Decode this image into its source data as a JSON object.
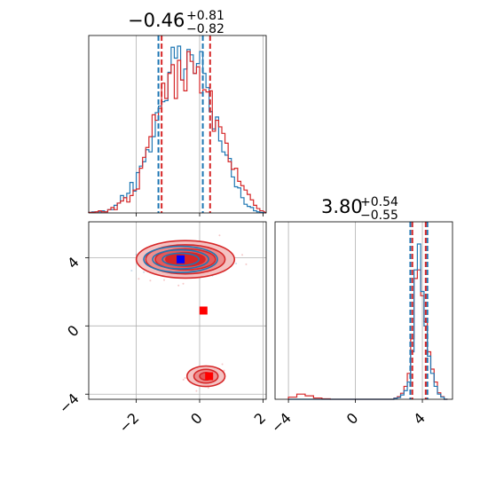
{
  "colors": {
    "blue": "#1f77b4",
    "red": "#d62728",
    "grid": "#b0b0b0",
    "spine": "#000000"
  },
  "chart_data": {
    "type": "corner",
    "series": [
      {
        "name": "",
        "color": "#1f77b4"
      },
      {
        "name": "",
        "color": "#d62728"
      }
    ],
    "panels": [
      {
        "panel": "hist-param-1",
        "type": "histogram",
        "title": {
          "main": "−0.46",
          "sup": "+0.81",
          "sub": "−0.82"
        },
        "xlim": [
          -3.5,
          2.1
        ],
        "grid": true,
        "quantiles": {
          "blue": [
            -1.3,
            0.1
          ],
          "red": [
            -1.2,
            0.33
          ]
        },
        "bins": [
          -3.5,
          -3.4,
          -3.3,
          -3.2,
          -3.1,
          -3.0,
          -2.9,
          -2.8,
          -2.7,
          -2.6,
          -2.5,
          -2.4,
          -2.3,
          -2.2,
          -2.1,
          -2.0,
          -1.9,
          -1.8,
          -1.7,
          -1.6,
          -1.5,
          -1.4,
          -1.3,
          -1.2,
          -1.1,
          -1.0,
          -0.9,
          -0.8,
          -0.7,
          -0.6,
          -0.5,
          -0.4,
          -0.3,
          -0.2,
          -0.1,
          0.0,
          0.1,
          0.2,
          0.3,
          0.4,
          0.5,
          0.6,
          0.7,
          0.8,
          0.9,
          1.0,
          1.1,
          1.2,
          1.3,
          1.4,
          1.5,
          1.6,
          1.7,
          1.8,
          1.9,
          2.0
        ],
        "counts": {
          "blue": [
            0.5,
            1,
            1,
            1,
            2,
            1,
            3,
            3,
            7,
            9,
            16,
            14,
            18,
            28,
            20,
            37,
            43,
            47,
            58,
            56,
            70,
            92,
            98,
            102,
            103,
            129,
            152,
            142,
            153,
            122,
            132,
            150,
            145,
            128,
            137,
            148,
            128,
            115,
            93,
            77,
            88,
            66,
            56,
            53,
            50,
            33,
            24,
            23,
            14,
            8,
            6,
            5,
            2,
            1,
            0.5
          ],
          "red": [
            0.5,
            0.5,
            1,
            2,
            1,
            1,
            3,
            5,
            3,
            9,
            11,
            14,
            10,
            16,
            21,
            22,
            41,
            51,
            60,
            70,
            90,
            85,
            96,
            119,
            105,
            128,
            136,
            105,
            140,
            122,
            112,
            148,
            139,
            128,
            134,
            110,
            113,
            111,
            112,
            75,
            85,
            79,
            73,
            64,
            47,
            40,
            41,
            29,
            25,
            21,
            17,
            12,
            7,
            4,
            2
          ]
        }
      },
      {
        "panel": "scatter-2d",
        "type": "contour",
        "xlim": [
          -3.5,
          2.1
        ],
        "ylim": [
          -4.3,
          6.1
        ],
        "xticks": [
          "−2",
          "0",
          "2"
        ],
        "yticks": [
          "−4",
          "0",
          "4"
        ],
        "xtick_values": [
          -2,
          0,
          2
        ],
        "ytick_values": [
          -4,
          0,
          4
        ],
        "grid": true,
        "markers": [
          {
            "color": "#1f77b4",
            "fill": "#0000ff",
            "x": -0.6,
            "y": 3.9
          },
          {
            "color": "#d62728",
            "fill": "#ff0000",
            "x": 0.12,
            "y": 0.9
          },
          {
            "color": "#d62728",
            "fill": "#ff0000",
            "x": 0.3,
            "y": -2.95
          }
        ],
        "blobs": [
          {
            "cx": -0.45,
            "cy": 3.9,
            "rx": [
              1.55,
              1.25,
              0.95,
              0.62
            ],
            "ry": [
              1.1,
              0.85,
              0.62,
              0.4
            ]
          },
          {
            "cx": 0.2,
            "cy": -2.95,
            "rx": [
              0.6,
              0.38,
              0.2
            ],
            "ry": [
              0.6,
              0.4,
              0.22
            ]
          }
        ]
      },
      {
        "panel": "hist-param-2",
        "type": "histogram",
        "title": {
          "main": "3.80",
          "sup": "+0.54",
          "sub": "−0.55"
        },
        "xlim": [
          -4.8,
          5.8
        ],
        "xticks": [
          "−4",
          "0",
          "4"
        ],
        "xtick_values": [
          -4,
          0,
          4
        ],
        "grid": true,
        "quantiles": {
          "blue": [
            3.28,
            4.3
          ],
          "red": [
            3.4,
            4.2
          ]
        },
        "bins": [
          -4.0,
          -3.5,
          -3.0,
          -2.5,
          -2.0,
          -1.5,
          2.3,
          2.5,
          2.7,
          2.9,
          3.1,
          3.3,
          3.5,
          3.7,
          3.9,
          4.1,
          4.3,
          4.5,
          4.7,
          4.9,
          5.1,
          5.3
        ],
        "counts": {
          "blue": [
            0,
            0,
            0,
            0,
            0,
            0,
            2,
            4,
            10,
            20,
            40,
            110,
            300,
            360,
            250,
            170,
            100,
            60,
            30,
            12,
            5,
            0
          ],
          "red": [
            5,
            12,
            8,
            3,
            1,
            0,
            3,
            6,
            14,
            30,
            60,
            140,
            280,
            300,
            240,
            180,
            110,
            70,
            40,
            15,
            6,
            0
          ]
        }
      }
    ]
  }
}
